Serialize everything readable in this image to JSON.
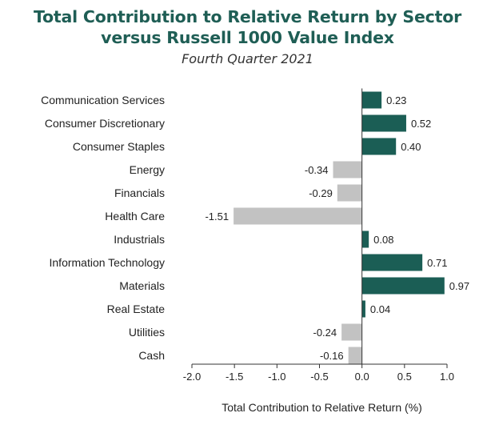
{
  "title_lines": [
    "Total Contribution to Relative Return by Sector",
    "versus Russell 1000 Value Index"
  ],
  "subtitle": "Fourth Quarter 2021",
  "chart_data": {
    "type": "bar",
    "orientation": "horizontal",
    "categories": [
      "Communication Services",
      "Consumer Discretionary",
      "Consumer Staples",
      "Energy",
      "Financials",
      "Health Care",
      "Industrials",
      "Information Technology",
      "Materials",
      "Real Estate",
      "Utilities",
      "Cash"
    ],
    "values": [
      0.23,
      0.52,
      0.4,
      -0.34,
      -0.29,
      -1.51,
      0.08,
      0.71,
      0.97,
      0.04,
      -0.24,
      -0.16
    ],
    "value_labels": [
      "0.23",
      "0.52",
      "0.40",
      "-0.34",
      "-0.29",
      "-1.51",
      "0.08",
      "0.71",
      "0.97",
      "0.04",
      "-0.24",
      "-0.16"
    ],
    "xlabel": "Total Contribution to Relative Return (%)",
    "xlim": [
      -2.0,
      1.0
    ],
    "xticks": [
      -2.0,
      -1.5,
      -1.0,
      -0.5,
      0.0,
      0.5,
      1.0
    ],
    "xtick_labels": [
      "-2.0",
      "-1.5",
      "-1.0",
      "-0.5",
      "0.0",
      "0.5",
      "1.0"
    ],
    "grid": false,
    "colors": {
      "positive": "#1b5e55",
      "negative": "#c2c2c2",
      "axis": "#333333"
    }
  }
}
